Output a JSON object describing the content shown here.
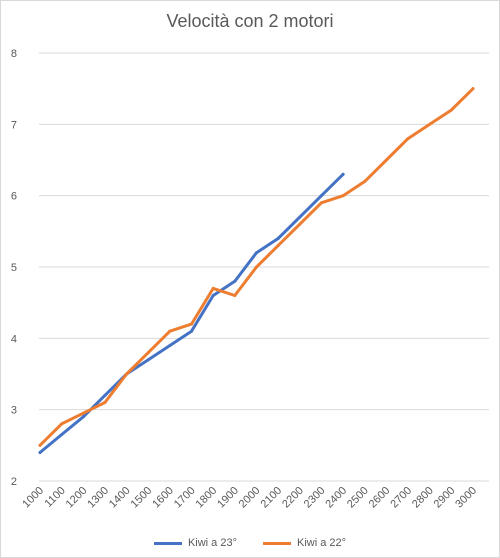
{
  "chart_data": {
    "type": "line",
    "title": "Velocità con 2 motori",
    "xlabel": "",
    "ylabel": "",
    "x": [
      "1000",
      "1100",
      "1200",
      "1300",
      "1400",
      "1500",
      "1600",
      "1700",
      "1800",
      "1900",
      "2000",
      "2100",
      "2200",
      "2300",
      "2400",
      "2500",
      "2600",
      "2700",
      "2800",
      "2900",
      "3000"
    ],
    "ylim": [
      2,
      8
    ],
    "yticks": [
      "2",
      "3",
      "4",
      "5",
      "6",
      "7",
      "8"
    ],
    "grid": true,
    "legend_position": "bottom",
    "series": [
      {
        "name": "Kiwi a 23°",
        "color": "#4472c4",
        "values": [
          2.4,
          2.65,
          2.9,
          3.2,
          3.5,
          3.7,
          3.9,
          4.1,
          4.6,
          4.8,
          5.2,
          5.4,
          5.7,
          6.0,
          6.3,
          null,
          null,
          null,
          null,
          null,
          null
        ]
      },
      {
        "name": "Kiwi a 22°",
        "color": "#ed7d31",
        "values": [
          2.5,
          2.8,
          2.95,
          3.1,
          3.5,
          3.8,
          4.1,
          4.2,
          4.7,
          4.6,
          5.0,
          5.3,
          5.6,
          5.9,
          6.0,
          6.2,
          6.5,
          6.8,
          7.0,
          7.2,
          7.5
        ]
      }
    ]
  }
}
